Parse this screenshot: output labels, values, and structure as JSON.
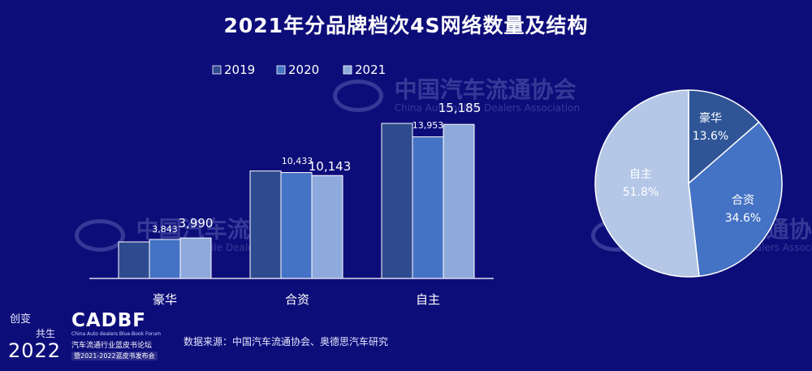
{
  "title": "2021年分品牌档次4S网络数量及结构",
  "source": "数据来源：中国汽车流通协会、奥德思汽车研究",
  "watermarks": [
    {
      "text_cn": "中国汽车流通协会",
      "text_en": "China Automobile Dealers Association",
      "logo": "CADA"
    }
  ],
  "footer_logo": {
    "line1": "创变",
    "line2": "共生",
    "year": "2022",
    "brand": "CADBF",
    "subtitle": "China Auto dealers Blue-Book Forum",
    "cn_name": "汽车流通行业蓝皮书论坛",
    "event": "暨2021-2022蓝皮书发布会"
  },
  "colors": {
    "background": "#0d0d7a",
    "s2019": "#2f4b8f",
    "s2020": "#4472c4",
    "s2021": "#8ea9db",
    "pie_lux": "#2f5597",
    "pie_jv": "#4472c4",
    "pie_dom": "#b4c7e7"
  },
  "chart_data": [
    {
      "type": "bar",
      "categories": [
        "豪华",
        "合资",
        "自主"
      ],
      "series": [
        {
          "name": "2019",
          "values": [
            3600,
            10590,
            15280
          ]
        },
        {
          "name": "2020",
          "values": [
            3843,
            10433,
            13953
          ]
        },
        {
          "name": "2021",
          "values": [
            3990,
            10143,
            15185
          ]
        }
      ],
      "data_labels": {
        "2020": [
          "3,843",
          "10,433",
          "13,953"
        ],
        "2021": [
          "3,990",
          "10,143",
          "15,185"
        ]
      },
      "legend_position": "top",
      "ylim": [
        0,
        16000
      ],
      "grid": false
    },
    {
      "type": "pie",
      "labels": [
        "豪华",
        "合资",
        "自主"
      ],
      "values": [
        13.6,
        34.6,
        51.8
      ],
      "value_labels": [
        "13.6%",
        "34.6%",
        "51.8%"
      ]
    }
  ]
}
